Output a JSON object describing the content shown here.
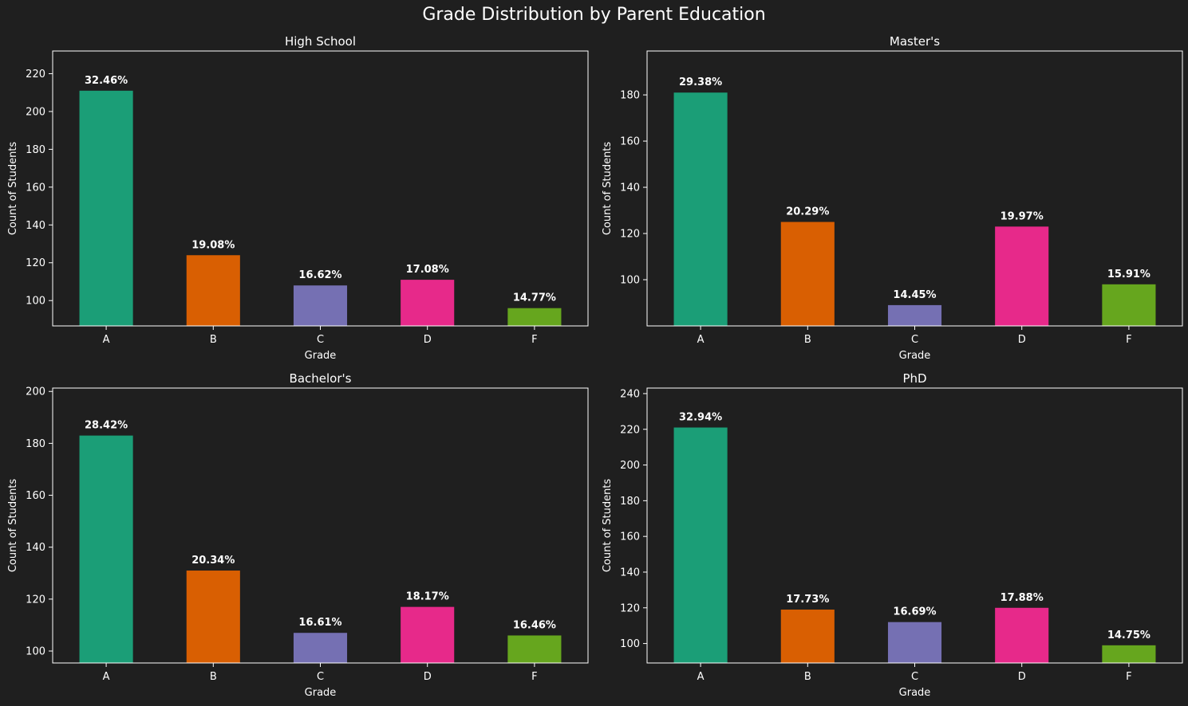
{
  "figure": {
    "title": "Grade Distribution by Parent Education"
  },
  "colors": {
    "background": "#1f1f1f",
    "text": "#ffffff",
    "bars": [
      "#1b9e77",
      "#d95f02",
      "#7570b3",
      "#e7298a",
      "#66a61e"
    ]
  },
  "chart_data": [
    {
      "type": "bar",
      "title": "High School",
      "xlabel": "Grade",
      "ylabel": "Count of Students",
      "categories": [
        "A",
        "B",
        "C",
        "D",
        "F"
      ],
      "values": [
        211,
        124,
        108,
        111,
        96
      ],
      "data_labels": [
        "32.46%",
        "19.08%",
        "16.62%",
        "17.08%",
        "14.77%"
      ],
      "ylim": [
        86.6,
        232
      ],
      "yticks": [
        100,
        120,
        140,
        160,
        180,
        200,
        220
      ],
      "grid": false,
      "legend": "none"
    },
    {
      "type": "bar",
      "title": "Master's",
      "xlabel": "Grade",
      "ylabel": "Count of Students",
      "categories": [
        "A",
        "B",
        "C",
        "D",
        "F"
      ],
      "values": [
        181,
        125,
        89,
        123,
        98
      ],
      "data_labels": [
        "29.38%",
        "20.29%",
        "14.45%",
        "19.97%",
        "15.91%"
      ],
      "ylim": [
        80,
        199
      ],
      "yticks": [
        100,
        120,
        140,
        160,
        180
      ],
      "grid": false,
      "legend": "none"
    },
    {
      "type": "bar",
      "title": "Bachelor's",
      "xlabel": "Grade",
      "ylabel": "Count of Students",
      "categories": [
        "A",
        "B",
        "C",
        "D",
        "F"
      ],
      "values": [
        183,
        131,
        107,
        117,
        106
      ],
      "data_labels": [
        "28.42%",
        "20.34%",
        "16.61%",
        "18.17%",
        "16.46%"
      ],
      "ylim": [
        95.4,
        201.3
      ],
      "yticks": [
        100,
        120,
        140,
        160,
        180,
        200
      ],
      "grid": false,
      "legend": "none"
    },
    {
      "type": "bar",
      "title": "PhD",
      "xlabel": "Grade",
      "ylabel": "Count of Students",
      "categories": [
        "A",
        "B",
        "C",
        "D",
        "F"
      ],
      "values": [
        221,
        119,
        112,
        120,
        99
      ],
      "data_labels": [
        "32.94%",
        "17.73%",
        "16.69%",
        "17.88%",
        "14.75%"
      ],
      "ylim": [
        89.1,
        243.1
      ],
      "yticks": [
        100,
        120,
        140,
        160,
        180,
        200,
        220,
        240
      ],
      "grid": false,
      "legend": "none"
    }
  ]
}
